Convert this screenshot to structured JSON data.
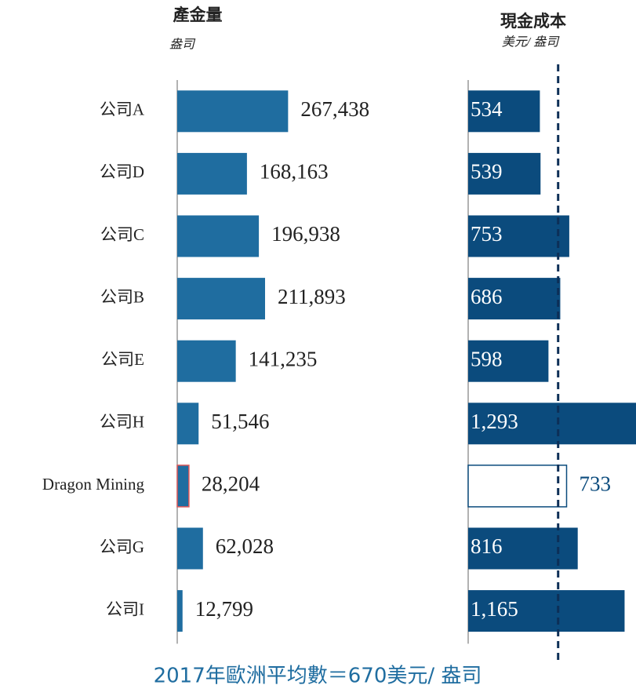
{
  "chart_data": {
    "type": "bar",
    "orientation": "horizontal",
    "categories": [
      "公司A",
      "公司D",
      "公司C",
      "公司B",
      "公司E",
      "公司H",
      "Dragon Mining",
      "公司G",
      "公司I"
    ],
    "highlight": "Dragon Mining",
    "series": [
      {
        "name": "產金量",
        "subtitle": "盎司",
        "color": "#1f6da0",
        "xlim": [
          0,
          700000
        ],
        "values": [
          267438,
          168163,
          196938,
          211893,
          141235,
          51546,
          28204,
          62028,
          12799
        ],
        "value_labels": [
          "267,438",
          "168,163",
          "196,938",
          "211,893",
          "141,235",
          "51,546",
          "28,204",
          "62,028",
          "12,799"
        ]
      },
      {
        "name": "現金成本",
        "subtitle": "美元/ 盎司",
        "color": "#0b4b7d",
        "xlim": [
          0,
          1250
        ],
        "values": [
          534,
          539,
          753,
          686,
          598,
          1293,
          733,
          816,
          1165
        ],
        "value_labels": [
          "534",
          "539",
          "753",
          "686",
          "598",
          "1,293",
          "733",
          "816",
          "1,165"
        ]
      }
    ],
    "reference_line": {
      "value": 670,
      "series": 1
    },
    "annotation": "2017年歐洲平均數＝670美元/ 盎司"
  }
}
